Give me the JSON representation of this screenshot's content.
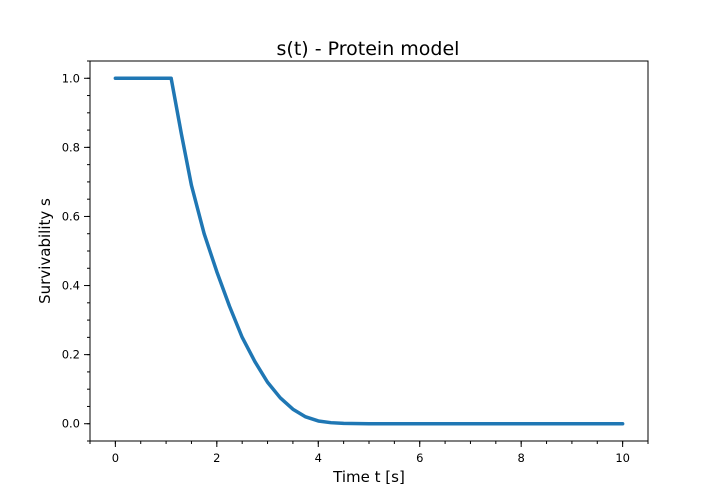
{
  "chart_data": {
    "type": "line",
    "title": "s(t) - Protein model",
    "xlabel": "Time t [s]",
    "ylabel": "Survivability s",
    "xlim": [
      -0.5,
      10.5
    ],
    "ylim": [
      -0.05,
      1.05
    ],
    "x_ticks": [
      0,
      2,
      4,
      6,
      8,
      10
    ],
    "y_ticks": [
      0.0,
      0.2,
      0.4,
      0.6,
      0.8,
      1.0
    ],
    "x_minor_step": 0.5,
    "y_minor_step": 0.05,
    "grid": false,
    "series": [
      {
        "color": "#1f77b4",
        "x": [
          0,
          0.5,
          1.0,
          1.1,
          1.3,
          1.5,
          1.75,
          2.0,
          2.25,
          2.5,
          2.75,
          3.0,
          3.25,
          3.5,
          3.75,
          4.0,
          4.25,
          4.5,
          5.0,
          6.0,
          7.0,
          8.0,
          9.0,
          10.0
        ],
        "y": [
          1.0,
          1.0,
          1.0,
          1.0,
          0.84,
          0.69,
          0.55,
          0.44,
          0.34,
          0.25,
          0.18,
          0.12,
          0.075,
          0.042,
          0.02,
          0.008,
          0.003,
          0.001,
          0.0,
          0.0,
          0.0,
          0.0,
          0.0,
          0.0
        ]
      }
    ]
  }
}
